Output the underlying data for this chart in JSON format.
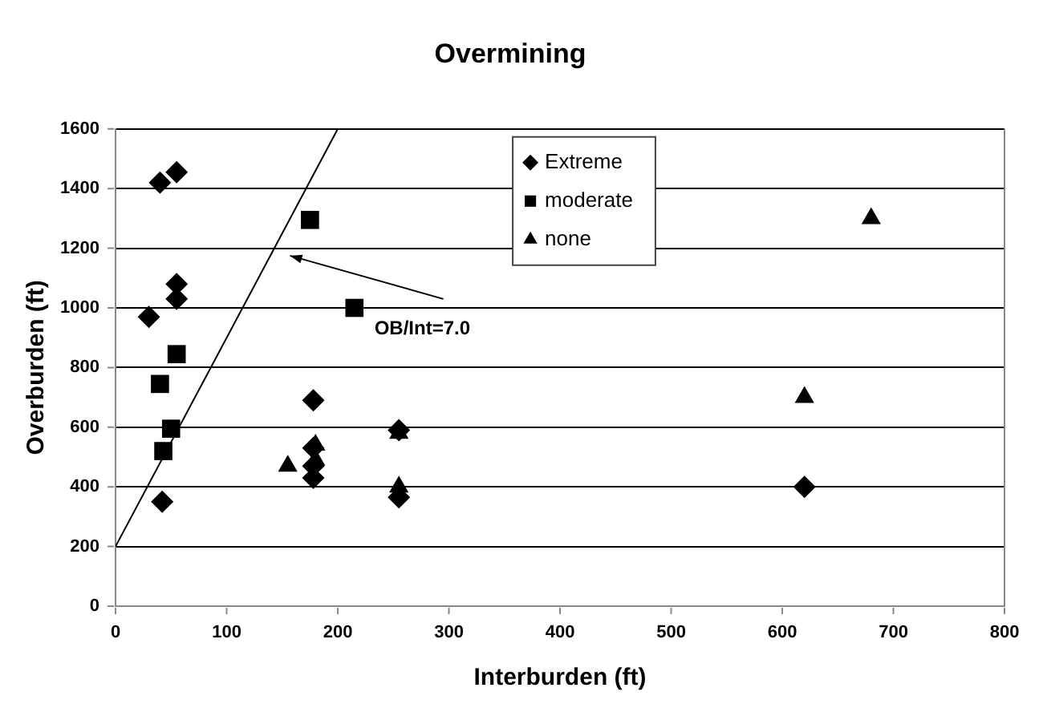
{
  "chart_data": {
    "type": "scatter",
    "title": "Overmining",
    "xlabel": "Interburden (ft)",
    "ylabel": "Overburden (ft)",
    "xlim": [
      0,
      800
    ],
    "xticks": [
      0,
      100,
      200,
      300,
      400,
      500,
      600,
      700,
      800
    ],
    "ylim": [
      0,
      1600
    ],
    "yticks": [
      0,
      200,
      400,
      600,
      800,
      1000,
      1200,
      1400,
      1600
    ],
    "grid": "y",
    "legend": "top",
    "annotations": [
      "OB/Int=7.0"
    ],
    "series": [
      {
        "name": "Extreme",
        "color": "#000000",
        "marker": "diamond",
        "x": [
          40,
          55,
          30,
          55,
          55,
          42,
          178,
          178,
          178,
          178,
          255,
          255,
          620
        ],
        "values": [
          1420,
          1455,
          970,
          1080,
          1030,
          350,
          690,
          530,
          470,
          430,
          590,
          365,
          400
        ]
      },
      {
        "name": "moderate",
        "color": "#000000",
        "marker": "square",
        "x": [
          175,
          215,
          55,
          40,
          50,
          43
        ],
        "values": [
          1295,
          1000,
          845,
          745,
          595,
          520
        ]
      },
      {
        "name": "none",
        "color": "#000000",
        "marker": "triangle",
        "x": [
          155,
          180,
          180,
          255,
          255,
          620,
          680
        ],
        "values": [
          470,
          540,
          490,
          580,
          400,
          700,
          1300
        ]
      },
      {
        "type": "line",
        "color": "#000000",
        "marker": "none",
        "x": [
          0,
          200
        ],
        "values": [
          200,
          1600
        ]
      }
    ]
  }
}
